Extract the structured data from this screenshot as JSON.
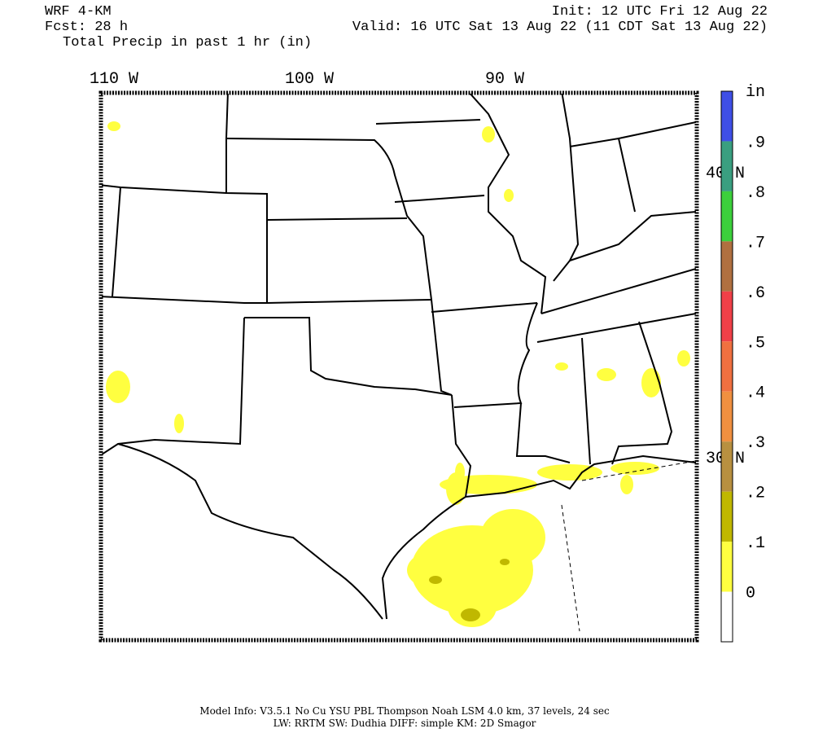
{
  "header": {
    "model": "WRF 4-KM",
    "fcst": "Fcst:   28 h",
    "field": "Total Precip in past 1 hr (in)",
    "init": "Init: 12 UTC Fri 12 Aug 22",
    "valid": "Valid: 16 UTC Sat 13 Aug 22 (11 CDT Sat 13 Aug 22)"
  },
  "longitudes": [
    "110 W",
    "100 W",
    "90 W"
  ],
  "latitudes": [
    "40 N",
    "30 N"
  ],
  "colorbar": {
    "unit": "in",
    "levels": [
      {
        "label": ".9",
        "color": "#3f4fe6"
      },
      {
        "label": ".8",
        "color": "#3a9f80"
      },
      {
        "label": ".7",
        "color": "#3cd03c"
      },
      {
        "label": ".6",
        "color": "#b07040"
      },
      {
        "label": ".5",
        "color": "#f04048"
      },
      {
        "label": ".4",
        "color": "#f07040"
      },
      {
        "label": ".3",
        "color": "#f09040"
      },
      {
        "label": ".2",
        "color": "#b89040"
      },
      {
        "label": ".1",
        "color": "#c0b800"
      },
      {
        "label": "0",
        "color": "#ffff40"
      }
    ],
    "bottom_color": "#ffffff"
  },
  "footer": [
    "Model Info: V3.5.1    No Cu    YSU PBL   Thompson     Noah LSM   4.0 km,   37 levels,    24 sec",
    "LW: RRTM  SW: Dudhia   DIFF: simple  KM: 2D Smagor"
  ]
}
